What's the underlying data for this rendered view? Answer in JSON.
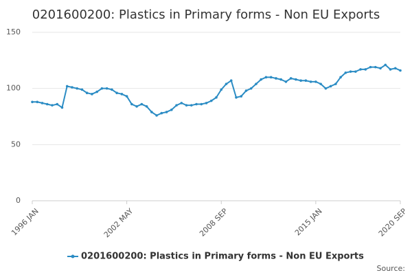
{
  "chart_data": {
    "type": "line",
    "title": "0201600200: Plastics in Primary forms - Non EU Exports",
    "source": "Source:",
    "categories": [
      "1996 JAN",
      null,
      null,
      null,
      null,
      null,
      null,
      null,
      null,
      null,
      null,
      null,
      null,
      null,
      null,
      null,
      null,
      null,
      null,
      "2002 MAY",
      null,
      null,
      null,
      null,
      null,
      null,
      null,
      null,
      null,
      null,
      null,
      null,
      null,
      null,
      null,
      null,
      null,
      null,
      "2008 SEP",
      null,
      null,
      null,
      null,
      null,
      null,
      null,
      null,
      null,
      null,
      null,
      null,
      null,
      null,
      null,
      null,
      null,
      null,
      "2015 JAN",
      null,
      null,
      null,
      null,
      null,
      null,
      null,
      null,
      null,
      null,
      null,
      null,
      null,
      null,
      null,
      null,
      "2020 SEP"
    ],
    "series": [
      {
        "name": "0201600200: Plastics in Primary forms - Non EU Exports",
        "color": "#2b8cc4",
        "values": [
          88,
          88,
          87,
          86,
          85,
          86,
          83,
          102,
          101,
          100,
          99,
          96,
          95,
          97,
          100,
          100,
          99,
          96,
          95,
          93,
          86,
          84,
          86,
          84,
          79,
          76,
          78,
          79,
          81,
          85,
          87,
          85,
          85,
          86,
          86,
          87,
          89,
          92,
          99,
          104,
          107,
          92,
          93,
          98,
          100,
          104,
          108,
          110,
          110,
          109,
          108,
          106,
          109,
          108,
          107,
          107,
          106,
          106,
          104,
          100,
          102,
          104,
          110,
          114,
          115,
          115,
          117,
          117,
          119,
          119,
          118,
          121,
          117,
          118,
          116
        ]
      }
    ],
    "ylim": [
      0,
      150
    ],
    "yticks": [
      0,
      50,
      100,
      150
    ],
    "grid": true,
    "legend": "bottom"
  }
}
